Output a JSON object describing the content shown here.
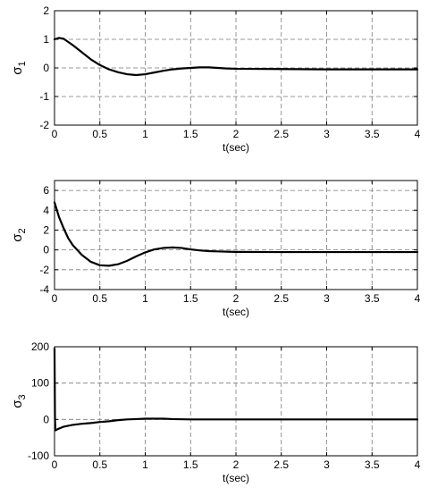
{
  "chart_data": [
    {
      "type": "line",
      "xlabel": "t(sec)",
      "ylabel": "σ",
      "ylabel_subscript": "1",
      "xlim": [
        0,
        4
      ],
      "ylim": [
        -2,
        2
      ],
      "xticks": [
        0,
        0.5,
        1,
        1.5,
        2,
        2.5,
        3,
        3.5,
        4
      ],
      "yticks": [
        -2,
        -1,
        0,
        1,
        2
      ],
      "grid": true,
      "series": [
        {
          "x": [
            0,
            0.05,
            0.1,
            0.2,
            0.3,
            0.4,
            0.5,
            0.6,
            0.7,
            0.8,
            0.9,
            1.0,
            1.1,
            1.2,
            1.3,
            1.4,
            1.5,
            1.6,
            1.7,
            1.8,
            1.9,
            2.0,
            2.5,
            3.0,
            3.5,
            4.0
          ],
          "y": [
            1.0,
            1.05,
            1.02,
            0.8,
            0.55,
            0.3,
            0.1,
            -0.05,
            -0.15,
            -0.22,
            -0.25,
            -0.22,
            -0.16,
            -0.1,
            -0.05,
            -0.02,
            0.0,
            0.02,
            0.02,
            0.0,
            -0.02,
            -0.03,
            -0.04,
            -0.05,
            -0.05,
            -0.05
          ],
          "color": "#000000"
        }
      ]
    },
    {
      "type": "line",
      "xlabel": "t(sec)",
      "ylabel": "σ",
      "ylabel_subscript": "2",
      "xlim": [
        0,
        4
      ],
      "ylim": [
        -4,
        7
      ],
      "xticks": [
        0,
        0.5,
        1,
        1.5,
        2,
        2.5,
        3,
        3.5,
        4
      ],
      "yticks": [
        -4,
        -2,
        0,
        2,
        4,
        6
      ],
      "grid": true,
      "series": [
        {
          "x": [
            0,
            0.05,
            0.1,
            0.15,
            0.2,
            0.3,
            0.4,
            0.5,
            0.6,
            0.7,
            0.8,
            0.9,
            1.0,
            1.1,
            1.2,
            1.3,
            1.4,
            1.5,
            1.6,
            1.7,
            1.8,
            1.9,
            2.0,
            2.5,
            3.0,
            3.5,
            4.0
          ],
          "y": [
            4.8,
            3.3,
            2.2,
            1.2,
            0.5,
            -0.5,
            -1.2,
            -1.55,
            -1.6,
            -1.45,
            -1.1,
            -0.65,
            -0.25,
            0.05,
            0.2,
            0.25,
            0.2,
            0.05,
            -0.05,
            -0.12,
            -0.15,
            -0.18,
            -0.2,
            -0.22,
            -0.22,
            -0.22,
            -0.22
          ],
          "color": "#000000"
        }
      ]
    },
    {
      "type": "line",
      "xlabel": "t(sec)",
      "ylabel": "σ",
      "ylabel_subscript": "3",
      "xlim": [
        0,
        4
      ],
      "ylim": [
        -100,
        200
      ],
      "xticks": [
        0,
        0.5,
        1,
        1.5,
        2,
        2.5,
        3,
        3.5,
        4
      ],
      "yticks": [
        -100,
        0,
        100,
        200
      ],
      "grid": true,
      "series": [
        {
          "x": [
            0,
            0.005,
            0.01,
            0.05,
            0.1,
            0.2,
            0.3,
            0.4,
            0.5,
            0.6,
            0.7,
            0.8,
            0.9,
            1.0,
            1.1,
            1.2,
            1.3,
            1.5,
            2.0,
            2.5,
            3.0,
            3.5,
            4.0
          ],
          "y": [
            195,
            0,
            -30,
            -25,
            -20,
            -15,
            -12,
            -10,
            -7,
            -5,
            -2,
            0,
            1,
            2,
            2,
            2,
            1,
            0,
            0,
            0,
            0,
            0,
            0
          ],
          "color": "#000000"
        }
      ]
    }
  ]
}
